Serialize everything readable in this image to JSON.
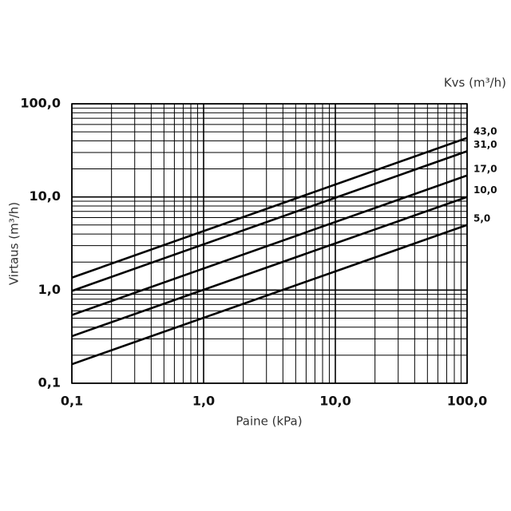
{
  "chart_data": {
    "type": "line",
    "legend_title": "Kvs (m³/h)",
    "xlabel": "Paine (kPa)",
    "ylabel": "Virtaus (m³/h)",
    "log_x": true,
    "log_y": true,
    "grid": true,
    "color": "#000000",
    "x": [
      0.1,
      100
    ],
    "series": [
      {
        "name": "43,0",
        "values": [
          1.36,
          43.0
        ]
      },
      {
        "name": "31,0",
        "values": [
          0.98,
          31.0
        ]
      },
      {
        "name": "17,0",
        "values": [
          0.54,
          17.0
        ]
      },
      {
        "name": "10,0",
        "values": [
          0.32,
          10.0
        ]
      },
      {
        "name": "5,0",
        "values": [
          0.16,
          5.0
        ]
      }
    ],
    "xlim": [
      0.1,
      100
    ],
    "ylim": [
      0.1,
      100
    ],
    "xticks": [
      {
        "value": 0.1,
        "label": "0,1"
      },
      {
        "value": 1,
        "label": "1,0"
      },
      {
        "value": 10,
        "label": "10,0"
      },
      {
        "value": 100,
        "label": "100,0"
      }
    ],
    "yticks": [
      {
        "value": 0.1,
        "label": "0,1"
      },
      {
        "value": 1,
        "label": "1,0"
      },
      {
        "value": 10,
        "label": "10,0"
      },
      {
        "value": 100,
        "label": "100,0"
      }
    ]
  }
}
